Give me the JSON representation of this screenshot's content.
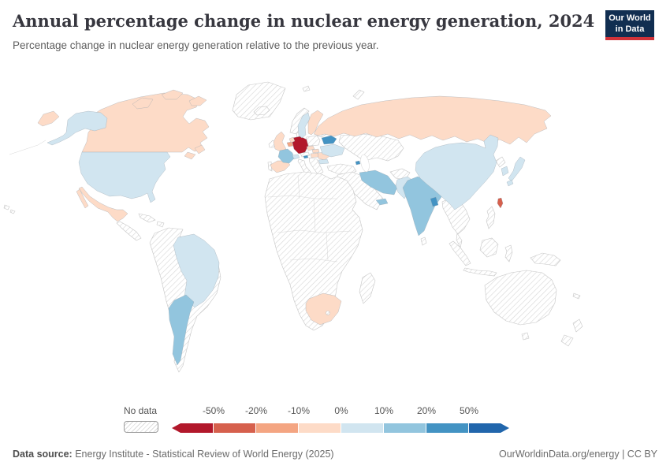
{
  "header": {
    "title": "Annual percentage change in nuclear energy generation, 2024",
    "subtitle": "Percentage change in nuclear energy generation relative to the previous year.",
    "logo": {
      "line1": "Our World",
      "line2": "in Data",
      "bg": "#112e51",
      "accent": "#d13239"
    }
  },
  "legend": {
    "no_data_label": "No data",
    "tick_labels": [
      "-50%",
      "-20%",
      "-10%",
      "0%",
      "10%",
      "20%",
      "50%"
    ],
    "colors": [
      "#b2182b",
      "#d6604d",
      "#f4a582",
      "#fddbc7",
      "#d1e5f0",
      "#92c5de",
      "#4393c3",
      "#2166ac"
    ]
  },
  "footer": {
    "source_label": "Data source:",
    "source_text": " Energy Institute - Statistical Review of World Energy (2025)",
    "right_text": "OurWorldinData.org/energy | CC BY"
  },
  "chart_data": {
    "type": "choropleth",
    "title": "Annual percentage change in nuclear energy generation, 2024",
    "unit": "%",
    "scale_type": "diverging",
    "bin_edges": [
      -50,
      -20,
      -10,
      0,
      10,
      20,
      50
    ],
    "bin_labels": [
      "less than -50%",
      "-50% to -20%",
      "-20% to -10%",
      "-10% to 0%",
      "0% to 10%",
      "10% to 20%",
      "20% to 50%",
      "more than 50%"
    ],
    "palette": [
      "#b2182b",
      "#d6604d",
      "#f4a582",
      "#fddbc7",
      "#d1e5f0",
      "#92c5de",
      "#4393c3",
      "#2166ac"
    ],
    "no_data": {
      "label": "No data",
      "style": "hatched"
    },
    "countries": {
      "Germany": 0,
      "Taiwan": 1,
      "Belgium": 2,
      "Canada": 3,
      "Mexico": 3,
      "Russia": 3,
      "United Kingdom": 3,
      "Spain": 3,
      "Netherlands": 3,
      "Finland": 3,
      "Czechia": 3,
      "Slovakia": 3,
      "Hungary": 3,
      "Romania": 3,
      "South Africa": 3,
      "United States": 4,
      "Brazil": 4,
      "China": 4,
      "Japan": 4,
      "South Korea": 4,
      "Sweden": 4,
      "Switzerland": 4,
      "Ukraine": 4,
      "Bulgaria": 4,
      "Pakistan": 4,
      "France": 5,
      "India": 5,
      "Iran": 5,
      "United Arab Emirates": 5,
      "Argentina": 5,
      "Belarus": 6,
      "Slovenia": 6,
      "Armenia": 6,
      "Bangladesh": 6
    }
  }
}
